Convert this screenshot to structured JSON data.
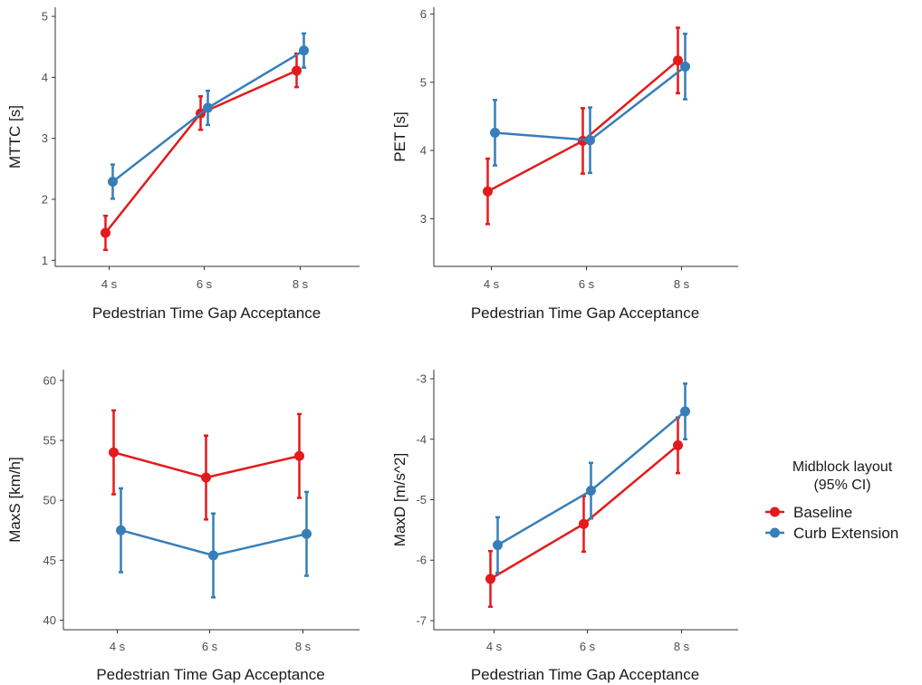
{
  "chart_data": [
    {
      "type": "line",
      "xlabel": "Pedestrian Time Gap Acceptance",
      "ylabel": "MTTC [s]",
      "categories": [
        "4 s",
        "6 s",
        "8 s"
      ],
      "ylim": [
        0.9,
        5.15
      ],
      "yticks": [
        "1",
        "2",
        "3",
        "4",
        "5"
      ],
      "grid": false,
      "series": [
        {
          "name": "Baseline",
          "color": "#e41a1c",
          "values": [
            1.45,
            3.41,
            4.11
          ],
          "ci_low": [
            1.17,
            3.14,
            3.84
          ],
          "ci_high": [
            1.73,
            3.69,
            4.39
          ]
        },
        {
          "name": "Curb Extension",
          "color": "#377eb8",
          "values": [
            2.29,
            3.5,
            4.44
          ],
          "ci_low": [
            2.01,
            3.22,
            4.16
          ],
          "ci_high": [
            2.57,
            3.78,
            4.72
          ]
        }
      ]
    },
    {
      "type": "line",
      "xlabel": "Pedestrian Time Gap Acceptance",
      "ylabel": "PET [s]",
      "categories": [
        "4 s",
        "6 s",
        "8 s"
      ],
      "ylim": [
        2.3,
        6.1
      ],
      "yticks": [
        "3",
        "4",
        "5",
        "6"
      ],
      "grid": false,
      "series": [
        {
          "name": "Baseline",
          "color": "#e41a1c",
          "values": [
            3.4,
            4.14,
            5.32
          ],
          "ci_low": [
            2.92,
            3.66,
            4.84
          ],
          "ci_high": [
            3.88,
            4.62,
            5.8
          ]
        },
        {
          "name": "Curb Extension",
          "color": "#377eb8",
          "values": [
            4.26,
            4.15,
            5.23
          ],
          "ci_low": [
            3.78,
            3.67,
            4.75
          ],
          "ci_high": [
            4.74,
            4.63,
            5.71
          ]
        }
      ]
    },
    {
      "type": "line",
      "xlabel": "Pedestrian Time Gap Acceptance",
      "ylabel": "MaxS [km/h]",
      "categories": [
        "4 s",
        "6 s",
        "8 s"
      ],
      "ylim": [
        39.2,
        60.9
      ],
      "yticks": [
        "40",
        "45",
        "50",
        "55",
        "60"
      ],
      "grid": false,
      "series": [
        {
          "name": "Baseline",
          "color": "#e41a1c",
          "values": [
            54.0,
            51.9,
            53.7
          ],
          "ci_low": [
            50.5,
            48.4,
            50.2
          ],
          "ci_high": [
            57.5,
            55.4,
            57.2
          ]
        },
        {
          "name": "Curb Extension",
          "color": "#377eb8",
          "values": [
            47.5,
            45.4,
            47.2
          ],
          "ci_low": [
            44.0,
            41.9,
            43.7
          ],
          "ci_high": [
            51.0,
            48.9,
            50.7
          ]
        }
      ]
    },
    {
      "type": "line",
      "xlabel": "Pedestrian Time Gap Acceptance",
      "ylabel": "MaxD [m/s^2]",
      "categories": [
        "4 s",
        "6 s",
        "8 s"
      ],
      "ylim": [
        -7.15,
        -2.85
      ],
      "yticks": [
        "-7",
        "-6",
        "-5",
        "-4",
        "-3"
      ],
      "grid": false,
      "series": [
        {
          "name": "Baseline",
          "color": "#e41a1c",
          "values": [
            -6.31,
            -5.4,
            -4.1
          ],
          "ci_low": [
            -6.77,
            -5.86,
            -4.56
          ],
          "ci_high": [
            -5.85,
            -4.94,
            -3.64
          ]
        },
        {
          "name": "Curb Extension",
          "color": "#377eb8",
          "values": [
            -5.75,
            -4.85,
            -3.54
          ],
          "ci_low": [
            -6.21,
            -5.31,
            -4.0
          ],
          "ci_high": [
            -5.29,
            -4.39,
            -3.08
          ]
        }
      ]
    }
  ],
  "legend": {
    "title_line1": "Midblock layout",
    "title_line2": "(95% CI)",
    "items": [
      {
        "label": "Baseline",
        "color": "#e41a1c"
      },
      {
        "label": "Curb Extension",
        "color": "#377eb8"
      }
    ]
  }
}
